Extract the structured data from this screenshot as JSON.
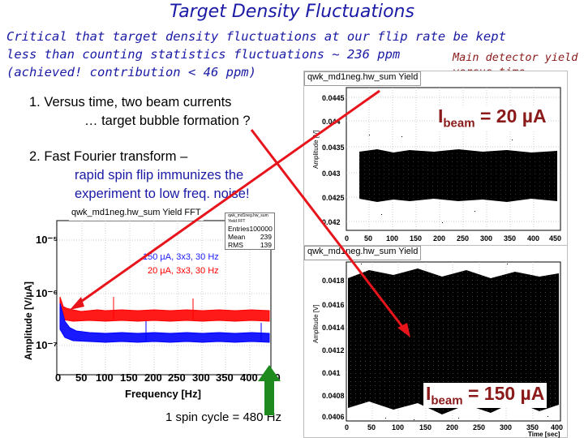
{
  "title": "Target Density Fluctuations",
  "critical": {
    "line1": "Critical that target density fluctuations at our flip rate be kept",
    "line2": "less than counting statistics fluctuations ~ 236 ppm",
    "line3": "(achieved!   contribution < 46 ppm)"
  },
  "main_detector": {
    "line1": "Main detector yield",
    "line2": "versus time"
  },
  "points": {
    "p1_line1": "1.  Versus time, two beam currents",
    "p1_line2": "… target bubble formation ?",
    "p2_line1": "2.  Fast Fourier transform –",
    "p2_line2": "rapid spin flip immunizes the",
    "p2_line3": "experiment to low freq. noise!"
  },
  "spin_cycle": "1 spin cycle = 480 Hz",
  "beams": {
    "low": {
      "prefix": "I",
      "sub": "beam",
      "value": " = 20 µA"
    },
    "high": {
      "prefix": "I",
      "sub": "beam",
      "value": " = 150 µA"
    }
  },
  "colors": {
    "title": "#1a1aa6",
    "accent_red": "#8b1a1a",
    "arrow_red": "#e8141c",
    "arrow_green": "#1e8a1e",
    "fft_red": "#ff0000",
    "fft_blue": "#0000ff"
  },
  "fft_panel": {
    "header": "qwk_md1neg.hw_sum Yield FFT",
    "stats": {
      "title": "qwk_md1neg.hw_sum Yield FFT",
      "rows": [
        {
          "k": "Entries",
          "v": "100000"
        },
        {
          "k": "Mean",
          "v": "239"
        },
        {
          "k": "RMS",
          "v": "139"
        }
      ]
    },
    "legend": [
      {
        "label": "150 µA, 3x3, 30 Hz",
        "color": "#1a1aff"
      },
      {
        "label": "20 µA, 3x3, 30 Hz",
        "color": "#ff0000"
      }
    ],
    "ylabel": "Amplitude [V/µA]",
    "xlabel": "Frequency [Hz]",
    "yticks": [
      "10⁻⁵",
      "10⁻⁶",
      "10⁻⁷"
    ],
    "xticks": [
      "0",
      "50",
      "100",
      "150",
      "200",
      "250",
      "300",
      "350",
      "400",
      "450"
    ]
  },
  "top_panel": {
    "header": "qwk_md1neg.hw_sum Yield",
    "ylabel": "Amplitude [V]",
    "yticks": [
      "0.0445",
      "0.044",
      "0.0435",
      "0.043",
      "0.0425",
      "0.042"
    ],
    "xticks": [
      "0",
      "50",
      "100",
      "150",
      "200",
      "250",
      "300",
      "350",
      "400",
      "450"
    ]
  },
  "bottom_panel": {
    "header": "qwk_md1neg.hw_sum Yield",
    "ylabel": "Amplitude [V]",
    "yticks": [
      "0.0418",
      "0.0416",
      "0.0414",
      "0.0412",
      "0.041",
      "0.0408",
      "0.0406"
    ],
    "xticks": [
      "0",
      "50",
      "100",
      "150",
      "200",
      "250",
      "300",
      "350",
      "400"
    ],
    "xlabel": "Time [sec]"
  }
}
